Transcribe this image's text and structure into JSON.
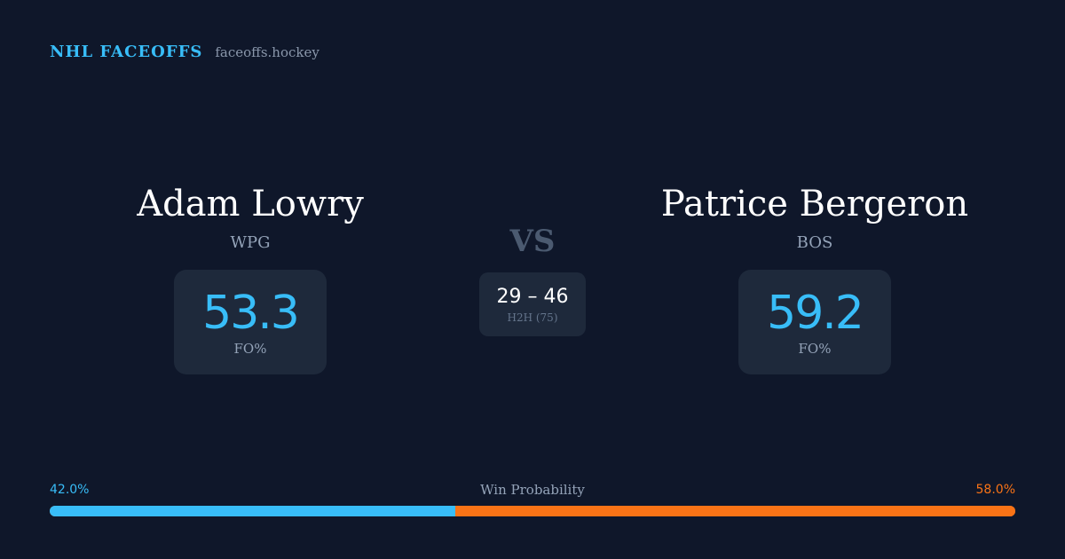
{
  "brand": {
    "name": "NHL FACEOFFS",
    "site": "faceoffs.hockey"
  },
  "players": [
    {
      "name": "Adam Lowry",
      "team": "WPG",
      "stat_value": "53.3",
      "stat_label": "FO%"
    },
    {
      "name": "Patrice Bergeron",
      "team": "BOS",
      "stat_value": "59.2",
      "stat_label": "FO%"
    }
  ],
  "vs_label": "VS",
  "h2h": {
    "score": "29 – 46",
    "label": "H2H (75)"
  },
  "win_probability": {
    "title": "Win Probability",
    "left_label": "42.0%",
    "right_label": "58.0%",
    "left_fraction": 0.42,
    "right_fraction": 0.58
  },
  "colors": {
    "background": "#0f172a",
    "card": "#1e293b",
    "accent_left": "#38bdf8",
    "accent_right": "#f97316",
    "muted_text": "#94a3b8"
  }
}
